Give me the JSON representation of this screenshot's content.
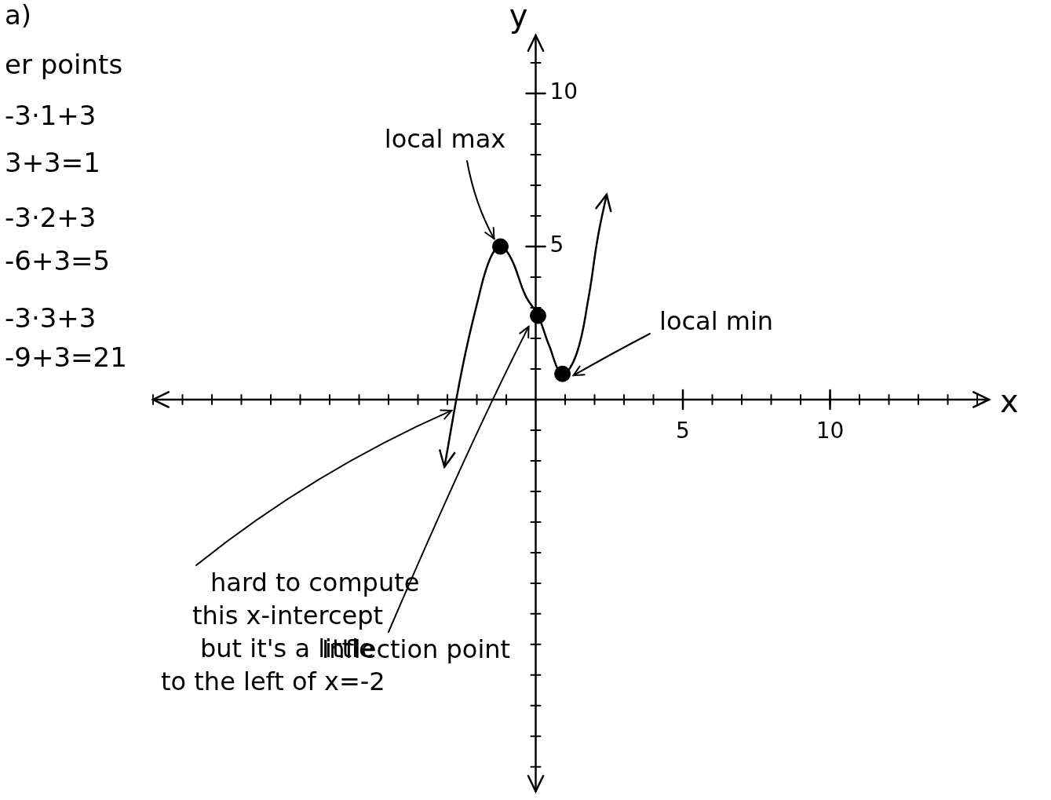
{
  "chart_data": {
    "type": "line",
    "x_label": "x",
    "y_label": "y",
    "xlim": [
      -13,
      15.4
    ],
    "ylim": [
      -12.8,
      11.9
    ],
    "xticks": [
      5,
      10
    ],
    "yticks": [
      5,
      10
    ],
    "grid": false,
    "series": [
      {
        "color": "#000000",
        "line_style": "solid",
        "x": [
          -3.1,
          -2.5,
          -1.95,
          -1.55,
          -1.2,
          -0.83,
          -0.35,
          0.08,
          0.45,
          0.91,
          1.39,
          1.79,
          2.11,
          2.41
        ],
        "values": [
          -2.2,
          1.0,
          3.3,
          4.6,
          5.0,
          4.6,
          3.4,
          2.74,
          1.78,
          0.84,
          1.5,
          3.3,
          5.3,
          6.7
        ]
      }
    ],
    "points": [
      {
        "label": "local max",
        "x": -1.2,
        "y": 5.0,
        "marker": "circle"
      },
      {
        "label": "Inflection point",
        "x": 0.08,
        "y": 2.74,
        "marker": "circle"
      },
      {
        "label": "local min",
        "x": 0.91,
        "y": 0.84,
        "marker": "circle"
      }
    ],
    "x_intercept_note": {
      "lines": [
        "hard to compute",
        "this x-intercept",
        "but it's a little",
        "to the left of x=-2"
      ],
      "x": -2.7,
      "y": 0
    },
    "margin_notes": [
      "a)",
      "er points",
      "-3·1+3",
      "3+3=1",
      "-3·2+3",
      "-6+3=5",
      "-3·3+3",
      "-9+3=21"
    ]
  }
}
